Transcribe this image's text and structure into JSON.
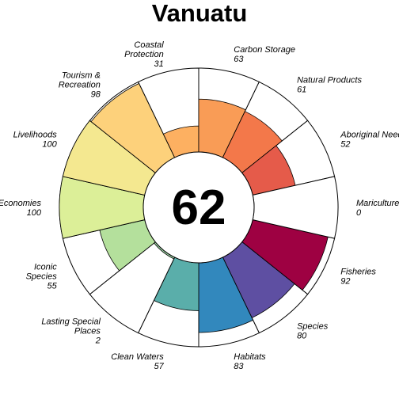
{
  "chart_data": {
    "type": "flower",
    "title": "Vanuatu",
    "center_score": "62",
    "max_value": 100,
    "petals": [
      {
        "name_lines": [
          "Fisheries"
        ],
        "value": 92,
        "value_text": "92",
        "color": "#9e0142"
      },
      {
        "name_lines": [
          "Species"
        ],
        "value": 80,
        "value_text": "80",
        "color": "#5e4fa2"
      },
      {
        "name_lines": [
          "Habitats"
        ],
        "value": 83,
        "value_text": "83",
        "color": "#3288bd"
      },
      {
        "name_lines": [
          "Clean Waters"
        ],
        "value": 57,
        "value_text": "57",
        "color": "#5aaeaa"
      },
      {
        "name_lines": [
          "Lasting Special",
          "Places"
        ],
        "value": 2,
        "value_text": "2",
        "color": "#9cd4a4"
      },
      {
        "name_lines": [
          "Iconic",
          "Species"
        ],
        "value": 55,
        "value_text": "55",
        "color": "#b4e09c"
      },
      {
        "name_lines": [
          "Economies"
        ],
        "value": 100,
        "value_text": "100",
        "color": "#dcef98"
      },
      {
        "name_lines": [
          "Livelihoods"
        ],
        "value": 100,
        "value_text": "100",
        "color": "#f4e890"
      },
      {
        "name_lines": [
          "Tourism &",
          "Recreation"
        ],
        "value": 98,
        "value_text": "98",
        "color": "#fdd17b"
      },
      {
        "name_lines": [
          "Coastal",
          "Protection"
        ],
        "value": 31,
        "value_text": "31",
        "color": "#fdb061"
      },
      {
        "name_lines": [
          "Carbon Storage"
        ],
        "value": 63,
        "value_text": "63",
        "color": "#f99c56"
      },
      {
        "name_lines": [
          "Natural Products"
        ],
        "value": 61,
        "value_text": "61",
        "color": "#f3784a"
      },
      {
        "name_lines": [
          "Aboriginal Needs"
        ],
        "value": 52,
        "value_text": "52",
        "color": "#e55b4a"
      },
      {
        "name_lines": [
          "Mariculture"
        ],
        "value": 0,
        "value_text": "0",
        "color": "#d53e4f"
      }
    ]
  }
}
